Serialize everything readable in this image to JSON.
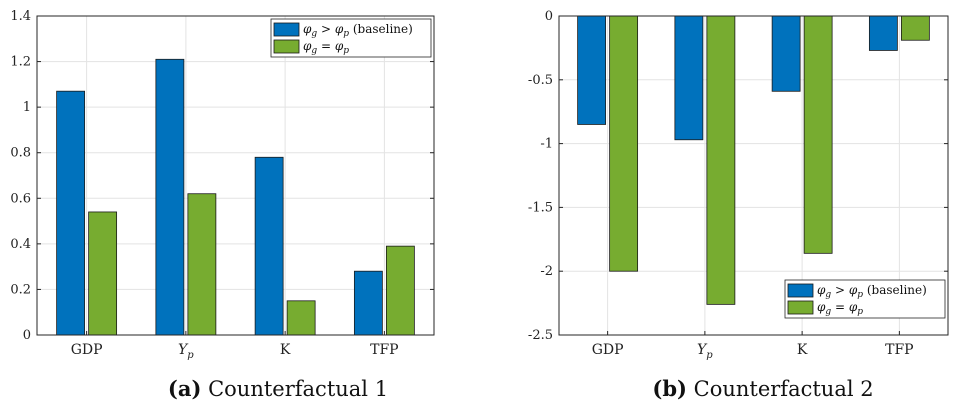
{
  "colors": {
    "baseline": "#0072BD",
    "equal": "#77AC30",
    "grid": "#e3e3e3",
    "axis": "#262626"
  },
  "chart_data": [
    {
      "type": "bar",
      "categories": [
        "GDP",
        "Y_p",
        "K",
        "TFP"
      ],
      "series": [
        {
          "name": "φ_g > φ_p (baseline)",
          "values": [
            1.07,
            1.21,
            0.78,
            0.28
          ]
        },
        {
          "name": "φ_g = φ_p",
          "values": [
            0.54,
            0.62,
            0.15,
            0.39
          ]
        }
      ],
      "ylim": [
        0,
        1.4
      ],
      "yticks": [
        0,
        0.2,
        0.4,
        0.6,
        0.8,
        1,
        1.2,
        1.4
      ],
      "grid": true,
      "legend_position": "top-right",
      "caption_label": "(a)",
      "caption_text": "Counterfactual 1"
    },
    {
      "type": "bar",
      "categories": [
        "GDP",
        "Y_p",
        "K",
        "TFP"
      ],
      "series": [
        {
          "name": "φ_g > φ_p (baseline)",
          "values": [
            -0.85,
            -0.97,
            -0.59,
            -0.27
          ]
        },
        {
          "name": "φ_g = φ_p",
          "values": [
            -2.0,
            -2.26,
            -1.86,
            -0.19
          ]
        }
      ],
      "ylim": [
        -2.5,
        0
      ],
      "yticks": [
        -2.5,
        -2,
        -1.5,
        -1,
        -0.5,
        0
      ],
      "grid": true,
      "legend_position": "bottom-right",
      "caption_label": "(b)",
      "caption_text": "Counterfactual 2"
    }
  ]
}
